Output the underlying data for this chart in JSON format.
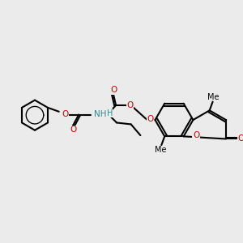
{
  "bg_color": [
    0.922,
    0.922,
    0.922
  ],
  "black": [
    0.0,
    0.0,
    0.0
  ],
  "red": [
    0.8,
    0.0,
    0.0
  ],
  "blue": [
    0.0,
    0.0,
    0.8
  ],
  "teal": [
    0.18,
    0.55,
    0.55
  ],
  "lw": 1.5,
  "font_size": 7.5
}
